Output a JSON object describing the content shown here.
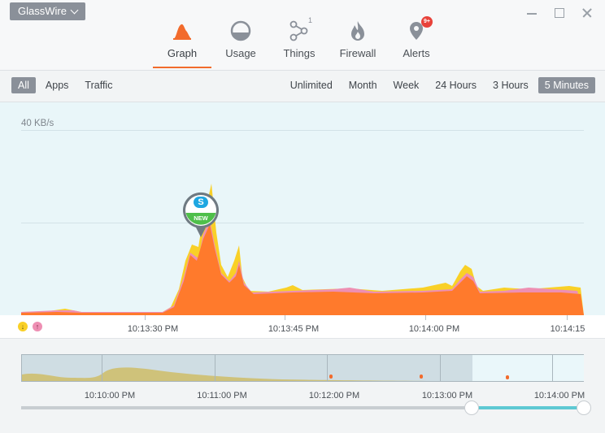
{
  "app": {
    "brand": "GlassWire"
  },
  "nav": [
    {
      "label": "Graph",
      "icon": "graph-icon",
      "active": true
    },
    {
      "label": "Usage",
      "icon": "usage-icon",
      "active": false
    },
    {
      "label": "Things",
      "icon": "things-icon",
      "badge": "1",
      "active": false
    },
    {
      "label": "Firewall",
      "icon": "firewall-icon",
      "active": false
    },
    {
      "label": "Alerts",
      "icon": "alerts-icon",
      "badge": "9+",
      "active": false
    }
  ],
  "filters": {
    "left": [
      {
        "label": "All",
        "selected": true
      },
      {
        "label": "Apps",
        "selected": false
      },
      {
        "label": "Traffic",
        "selected": false
      }
    ],
    "right": [
      {
        "label": "Unlimited",
        "selected": false
      },
      {
        "label": "Month",
        "selected": false
      },
      {
        "label": "Week",
        "selected": false
      },
      {
        "label": "24 Hours",
        "selected": false
      },
      {
        "label": "3 Hours",
        "selected": false
      },
      {
        "label": "5 Minutes",
        "selected": true
      }
    ]
  },
  "graph": {
    "scale_label": "40 KB/s",
    "app_marker": {
      "badge": "NEW",
      "icon": "skype-icon"
    },
    "time_ticks": [
      "10:13:30 PM",
      "10:13:45 PM",
      "10:14:00 PM",
      "10:14:15"
    ],
    "colors": {
      "incoming": "#f9d027",
      "outgoing": "#ee8fb3",
      "combined": "#ff7a2c",
      "background": "#e9f6f9"
    }
  },
  "overview": {
    "time_ticks": [
      "10:10:00 PM",
      "10:11:00 PM",
      "10:12:00 PM",
      "10:13:00 PM",
      "10:14:00 PM"
    ]
  }
}
